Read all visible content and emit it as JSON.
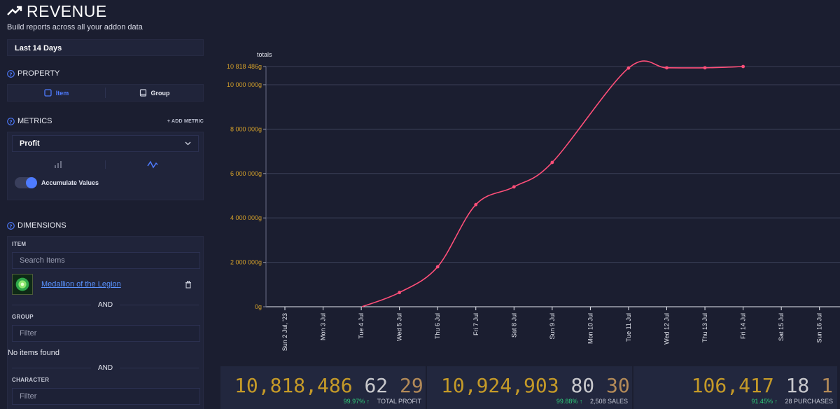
{
  "header": {
    "title": "REVENUE",
    "subtitle": "Build reports across all your addon data"
  },
  "sidebar": {
    "date_range": "Last 14 Days",
    "property": {
      "heading": "PROPERTY",
      "options": [
        {
          "label": "Item",
          "active": true
        },
        {
          "label": "Group",
          "active": false
        }
      ]
    },
    "metrics": {
      "heading": "METRICS",
      "add_label": "+ ADD METRIC",
      "selected": "Profit",
      "accumulate_label": "Accumulate Values",
      "accumulate_on": true
    },
    "dimensions": {
      "heading": "DIMENSIONS",
      "item_label": "ITEM",
      "item_placeholder": "Search Items",
      "item_name": "Medallion of the Legion",
      "and_1": "AND",
      "group_label": "GROUP",
      "group_placeholder": "Filter",
      "no_items": "No items found",
      "and_2": "AND",
      "character_label": "CHARACTER",
      "character_placeholder": "Filter"
    }
  },
  "chart_data": {
    "type": "line",
    "title": "totals",
    "categories": [
      "Sun 2 Jul, '23",
      "Mon 3 Jul",
      "Tue 4 Jul",
      "Wed 5 Jul",
      "Thu 6 Jul",
      "Fri 7 Jul",
      "Sat 8 Jul",
      "Sun 9 Jul",
      "Mon 10 Jul",
      "Tue 11 Jul",
      "Wed 12 Jul",
      "Thu 13 Jul",
      "Fri 14 Jul",
      "Sat 15 Jul",
      "Sun 16 Jul"
    ],
    "series": [
      {
        "name": "Profit",
        "values": [
          0,
          0,
          0,
          640000,
          1800000,
          4600000,
          5400000,
          6500000,
          null,
          10750000,
          10760000,
          10760000,
          10818486,
          null,
          null
        ]
      }
    ],
    "y_ticks": [
      0,
      2000000,
      4000000,
      6000000,
      8000000,
      10000000,
      10818486
    ],
    "y_tick_labels": [
      "0g",
      "2 000 000g",
      "4 000 000g",
      "6 000 000g",
      "8 000 000g",
      "10 000 000g",
      "10 818 486g"
    ],
    "ylim": [
      0,
      10818486
    ],
    "line_color": "#ff4f79",
    "axis_label_color": "#d4a02a"
  },
  "stats": [
    {
      "main": "10,818,486",
      "secondary": "62",
      "tertiary": "29",
      "pct": "99.97% ↑",
      "label": "TOTAL PROFIT"
    },
    {
      "main": "10,924,903",
      "secondary": "80",
      "tertiary": "30",
      "pct": "99.88% ↑",
      "label": "2,508 SALES"
    },
    {
      "main": "106,417",
      "secondary": "18",
      "tertiary": "1",
      "pct": "91.45% ↑",
      "label": "28 PURCHASES"
    }
  ],
  "colors": {
    "accent": "#4e7bff",
    "background": "#1b1e30",
    "gold": "#c59a28",
    "positive": "#2fcf7b"
  }
}
